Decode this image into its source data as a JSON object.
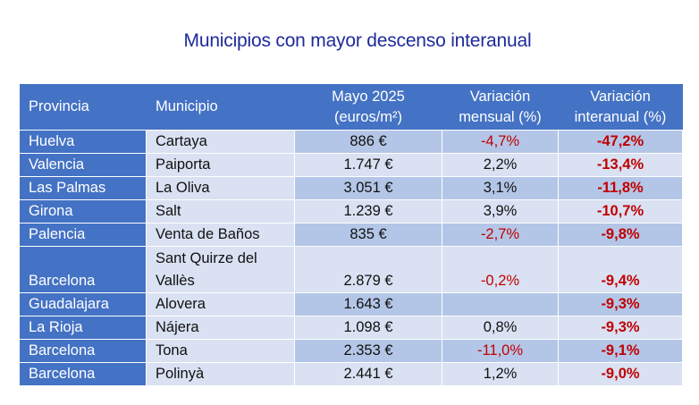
{
  "title": "Municipios con mayor descenso interanual",
  "headers": {
    "provincia": "Provincia",
    "municipio": "Municipio",
    "precio_line1": "Mayo 2025",
    "precio_line2": "(euros/m²)",
    "mensual_line1": "Variación",
    "mensual_line2": "mensual (%)",
    "interanual_line1": "Variación",
    "interanual_line2": "interanual (%)"
  },
  "rows": [
    {
      "provincia": "Huelva",
      "municipio": "Cartaya",
      "precio": "886 €",
      "mensual": "-4,7%",
      "interanual": "-47,2%"
    },
    {
      "provincia": "Valencia",
      "municipio": "Paiporta",
      "precio": "1.747 €",
      "mensual": "2,2%",
      "interanual": "-13,4%"
    },
    {
      "provincia": "Las Palmas",
      "municipio": "La Oliva",
      "precio": "3.051 €",
      "mensual": "3,1%",
      "interanual": "-11,8%"
    },
    {
      "provincia": "Girona",
      "municipio": "Salt",
      "precio": "1.239 €",
      "mensual": "3,9%",
      "interanual": "-10,7%"
    },
    {
      "provincia": "Palencia",
      "municipio": "Venta de Baños",
      "precio": "835 €",
      "mensual": "-2,7%",
      "interanual": "-9,8%"
    },
    {
      "provincia": "Barcelona",
      "municipio": "Sant Quirze del Vallès",
      "precio": "2.879 €",
      "mensual": "-0,2%",
      "interanual": "-9,4%"
    },
    {
      "provincia": "Guadalajara",
      "municipio": "Alovera",
      "precio": "1.643 €",
      "mensual": "",
      "interanual": "-9,3%"
    },
    {
      "provincia": "La Rioja",
      "municipio": "Nájera",
      "precio": "1.098 €",
      "mensual": "0,8%",
      "interanual": "-9,3%"
    },
    {
      "provincia": "Barcelona",
      "municipio": "Tona",
      "precio": "2.353 €",
      "mensual": "-11,0%",
      "interanual": "-9,1%"
    },
    {
      "provincia": "Barcelona",
      "municipio": "Polinyà",
      "precio": "2.441 €",
      "mensual": "1,2%",
      "interanual": "-9,0%"
    }
  ]
}
